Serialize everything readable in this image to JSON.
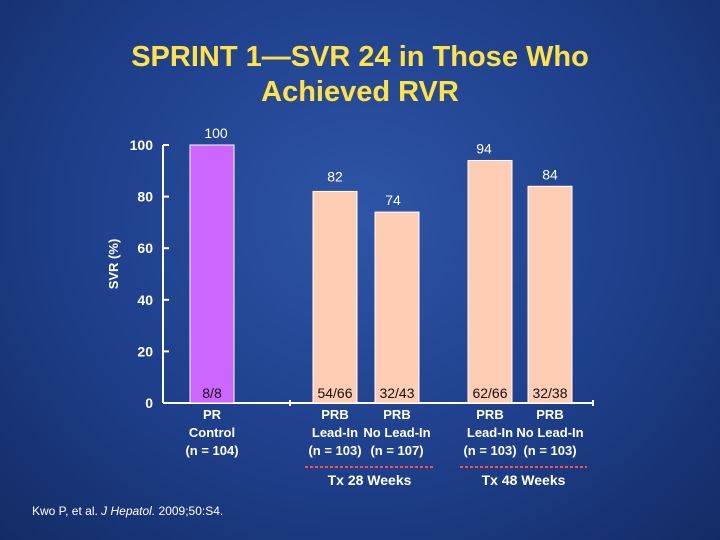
{
  "title_lines": [
    "SPRINT 1—SVR 24 in Those Who",
    "Achieved RVR"
  ],
  "citation": {
    "prefix": "Kwo P, et al. ",
    "journal": "J Hepatol.",
    "suffix": " 2009;50:S4."
  },
  "colors": {
    "title": "#ffe24a",
    "bar_control": "#cc66ff",
    "bar_prb": "#ffcdb3",
    "bar_border": "#ffffff",
    "group_divider": "#ff4d4d",
    "text": "#ffffff"
  },
  "chart_data": {
    "type": "bar",
    "ylabel": "SVR (%)",
    "ylim": [
      0,
      100
    ],
    "yticks": [
      "0",
      "20",
      "40",
      "60",
      "80",
      "100"
    ],
    "ytick_values": [
      0,
      20,
      40,
      60,
      80,
      100
    ],
    "bars": [
      {
        "label_lines": [
          "PR",
          "Control",
          "(n = 104)"
        ],
        "value": 100,
        "value_label": "100",
        "fraction": "8/8",
        "color_key": "bar_control"
      },
      {
        "label_lines": [
          "PRB",
          "Lead-In",
          "(n = 103)"
        ],
        "value": 82,
        "value_label": "82",
        "fraction": "54/66",
        "color_key": "bar_prb"
      },
      {
        "label_lines": [
          "PRB",
          "No Lead-In",
          "(n = 107)"
        ],
        "value": 74,
        "value_label": "74",
        "fraction": "32/43",
        "color_key": "bar_prb"
      },
      {
        "label_lines": [
          "PRB",
          "Lead-In",
          "(n = 103)"
        ],
        "value": 94,
        "value_label": "94",
        "fraction": "62/66",
        "color_key": "bar_prb"
      },
      {
        "label_lines": [
          "PRB",
          "No Lead-In",
          "(n = 103)"
        ],
        "value": 84,
        "value_label": "84",
        "fraction": "32/38",
        "color_key": "bar_prb"
      }
    ],
    "groups": [
      {
        "label": "Tx 28 Weeks",
        "bar_indices": [
          1,
          2
        ]
      },
      {
        "label": "Tx 48 Weeks",
        "bar_indices": [
          3,
          4
        ]
      }
    ]
  }
}
